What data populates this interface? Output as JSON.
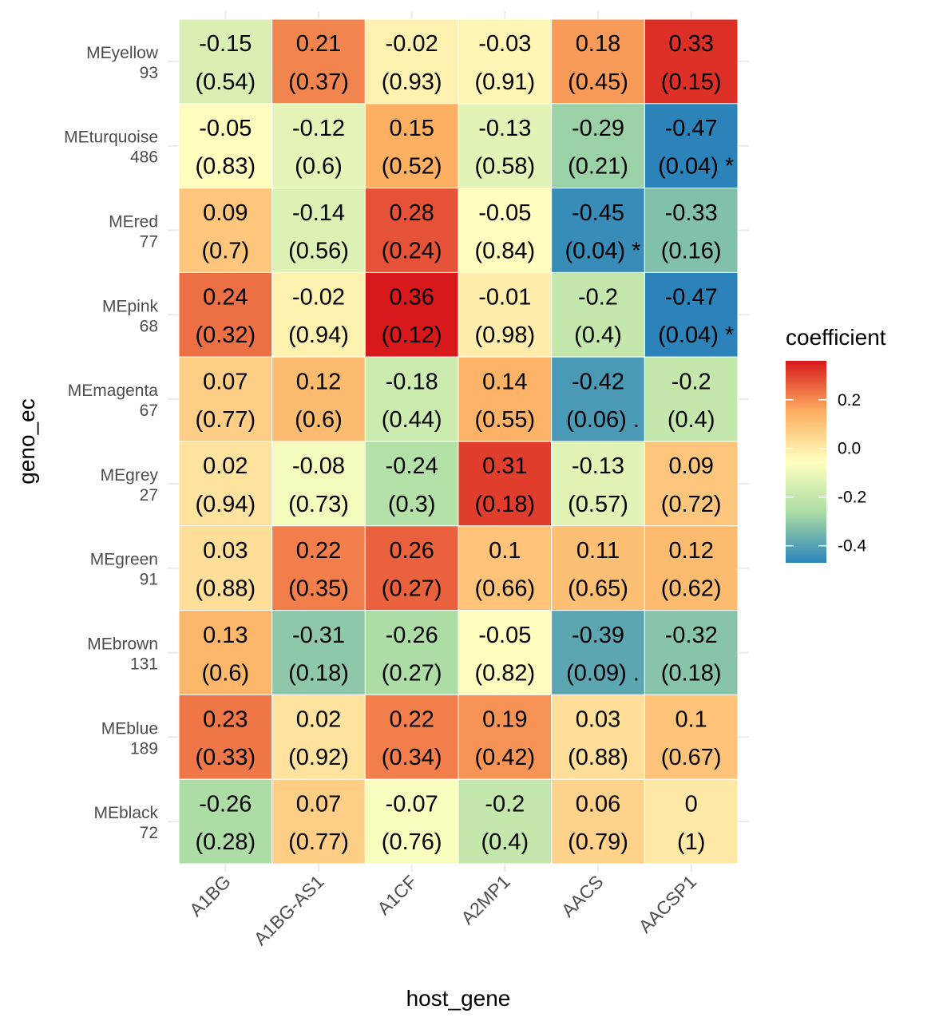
{
  "chart_data": {
    "type": "heatmap",
    "title": "",
    "xlabel": "host_gene",
    "ylabel": "geno_ec",
    "x_categories": [
      "A1BG",
      "A1BG-AS1",
      "A1CF",
      "A2MP1",
      "AACS",
      "AACSP1"
    ],
    "y_categories": [
      {
        "name": "MEyellow",
        "count": "93"
      },
      {
        "name": "MEturquoise",
        "count": "486"
      },
      {
        "name": "MEred",
        "count": "77"
      },
      {
        "name": "MEpink",
        "count": "68"
      },
      {
        "name": "MEmagenta",
        "count": "67"
      },
      {
        "name": "MEgrey",
        "count": "27"
      },
      {
        "name": "MEgreen",
        "count": "91"
      },
      {
        "name": "MEbrown",
        "count": "131"
      },
      {
        "name": "MEblue",
        "count": "189"
      },
      {
        "name": "MEblack",
        "count": "72"
      }
    ],
    "coefficients": [
      [
        -0.15,
        0.21,
        -0.02,
        -0.03,
        0.18,
        0.33
      ],
      [
        -0.05,
        -0.12,
        0.15,
        -0.13,
        -0.29,
        -0.47
      ],
      [
        0.09,
        -0.14,
        0.28,
        -0.05,
        -0.45,
        -0.33
      ],
      [
        0.24,
        -0.02,
        0.36,
        -0.01,
        -0.2,
        -0.47
      ],
      [
        0.07,
        0.12,
        -0.18,
        0.14,
        -0.42,
        -0.2
      ],
      [
        0.02,
        -0.08,
        -0.24,
        0.31,
        -0.13,
        0.09
      ],
      [
        0.03,
        0.22,
        0.26,
        0.1,
        0.11,
        0.12
      ],
      [
        0.13,
        -0.31,
        -0.26,
        -0.05,
        -0.39,
        -0.32
      ],
      [
        0.23,
        0.02,
        0.22,
        0.19,
        0.03,
        0.1
      ],
      [
        -0.26,
        0.07,
        -0.07,
        -0.2,
        0.06,
        0
      ]
    ],
    "pvalue_labels": [
      [
        "(0.54)",
        "(0.37)",
        "(0.93)",
        "(0.91)",
        "(0.45)",
        "(0.15)"
      ],
      [
        "(0.83)",
        "(0.6)",
        "(0.52)",
        "(0.58)",
        "(0.21)",
        "(0.04) *"
      ],
      [
        "(0.7)",
        "(0.56)",
        "(0.24)",
        "(0.84)",
        "(0.04) *",
        "(0.16)"
      ],
      [
        "(0.32)",
        "(0.94)",
        "(0.12)",
        "(0.98)",
        "(0.4)",
        "(0.04) *"
      ],
      [
        "(0.77)",
        "(0.6)",
        "(0.44)",
        "(0.55)",
        "(0.06) .",
        "(0.4)"
      ],
      [
        "(0.94)",
        "(0.73)",
        "(0.3)",
        "(0.18)",
        "(0.57)",
        "(0.72)"
      ],
      [
        "(0.88)",
        "(0.35)",
        "(0.27)",
        "(0.66)",
        "(0.65)",
        "(0.62)"
      ],
      [
        "(0.6)",
        "(0.18)",
        "(0.27)",
        "(0.82)",
        "(0.09) .",
        "(0.18)"
      ],
      [
        "(0.33)",
        "(0.92)",
        "(0.34)",
        "(0.42)",
        "(0.88)",
        "(0.67)"
      ],
      [
        "(0.28)",
        "(0.77)",
        "(0.76)",
        "(0.4)",
        "(0.79)",
        "(1)"
      ]
    ],
    "legend": {
      "title": "coefficient",
      "position": "right",
      "ticks": [
        0.2,
        0.0,
        -0.2,
        -0.4
      ],
      "tick_labels": [
        "0.2",
        "0.0",
        "-0.2",
        "-0.4"
      ],
      "range": [
        -0.47,
        0.36
      ]
    },
    "colorscale": {
      "name": "Spectral",
      "stops": [
        "#2b83ba",
        "#abdda4",
        "#ffffbf",
        "#fdae61",
        "#d7191c"
      ]
    },
    "grid": true
  }
}
